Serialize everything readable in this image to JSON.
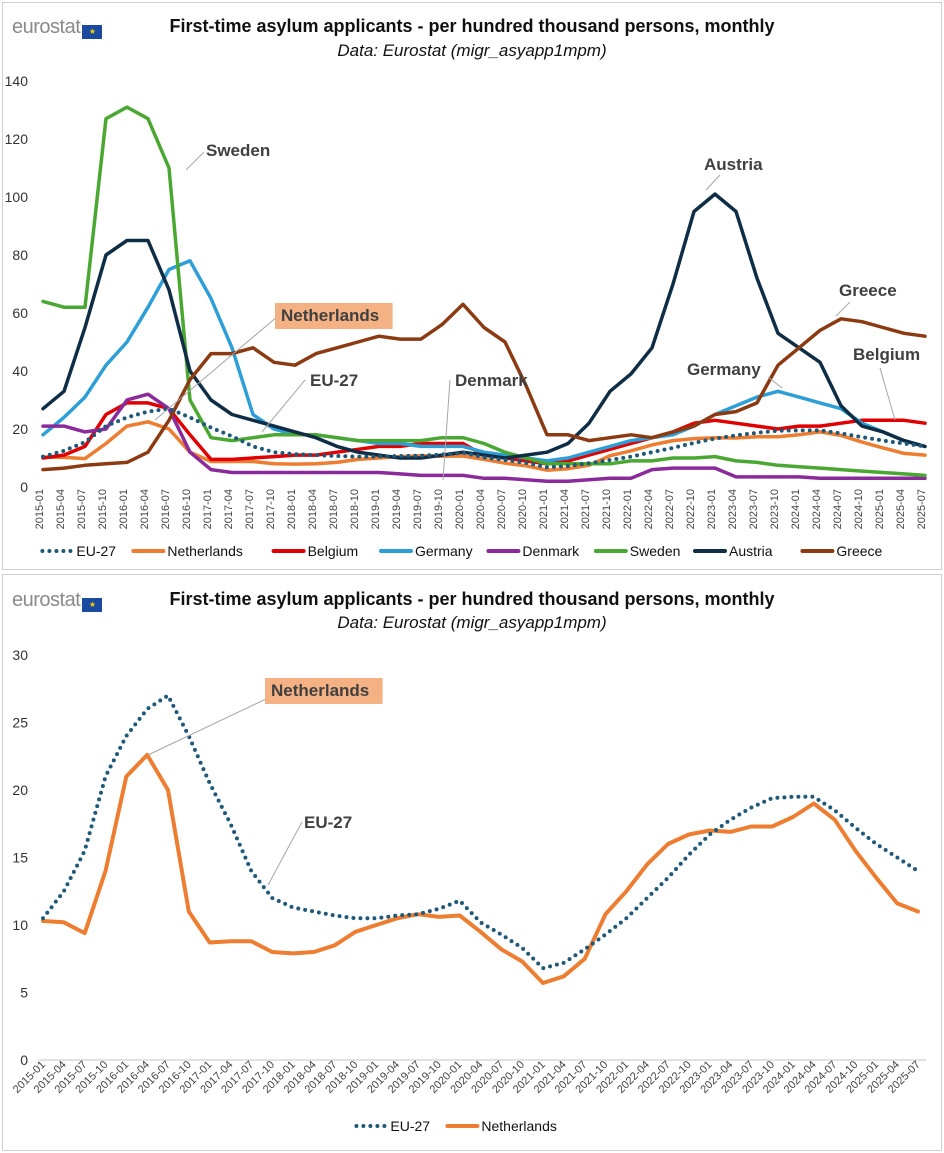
{
  "logo_text": "eurostat",
  "chart_data": [
    {
      "type": "line",
      "title": "First-time asylum applicants - per hundred thousand persons, monthly",
      "subtitle": "Data: Eurostat (migr_asyapp1mpm)",
      "ylim": [
        0,
        140
      ],
      "yticks": [
        0,
        20,
        40,
        60,
        80,
        100,
        120,
        140
      ],
      "grid": false,
      "legend": "bottom",
      "x": [
        "2015-01",
        "2015-04",
        "2015-07",
        "2015-10",
        "2016-01",
        "2016-04",
        "2016-07",
        "2016-10",
        "2017-01",
        "2017-04",
        "2017-07",
        "2017-10",
        "2018-01",
        "2018-04",
        "2018-07",
        "2018-10",
        "2019-01",
        "2019-04",
        "2019-07",
        "2019-10",
        "2020-01",
        "2020-04",
        "2020-07",
        "2020-10",
        "2021-01",
        "2021-04",
        "2021-07",
        "2021-10",
        "2022-01",
        "2022-04",
        "2022-07",
        "2022-10",
        "2023-01",
        "2023-04",
        "2023-07",
        "2023-10",
        "2024-01",
        "2024-04",
        "2024-07",
        "2024-10",
        "2025-01",
        "2025-04",
        "2025-07"
      ],
      "series": [
        {
          "name": "EU-27",
          "color": "#1f5878",
          "style": "dotted",
          "values": [
            10.5,
            12.5,
            15.5,
            21,
            24,
            26,
            27,
            24,
            20.5,
            17.5,
            14,
            12,
            11.3,
            11,
            10.7,
            10.5,
            10.5,
            10.7,
            10.8,
            11.2,
            11.8,
            10.2,
            9.3,
            8.3,
            6.8,
            7.2,
            8.2,
            9.3,
            10.5,
            12,
            13.5,
            15.2,
            16.7,
            17.8,
            18.7,
            19.4,
            19.5,
            19.5,
            18.5,
            17.2,
            16,
            15,
            14
          ]
        },
        {
          "name": "Netherlands",
          "color": "#ed7d31",
          "style": "solid",
          "values": [
            10.3,
            10.2,
            9.8,
            15,
            21,
            22.5,
            20,
            12,
            8.8,
            8.8,
            8.8,
            8,
            7.9,
            8,
            8.5,
            9.5,
            10,
            10.5,
            10.8,
            10.6,
            10.7,
            9.5,
            8.2,
            7.3,
            5.8,
            6.3,
            7.5,
            10.8,
            12.5,
            14.5,
            16,
            16.7,
            17,
            16.9,
            17.3,
            17.3,
            18,
            19,
            17.8,
            15.5,
            13.5,
            11.6,
            11
          ]
        },
        {
          "name": "Belgium",
          "color": "#e00000",
          "style": "solid",
          "values": [
            10,
            11,
            14,
            25,
            29,
            29,
            27,
            18,
            9.5,
            9.5,
            10,
            10.5,
            11,
            11,
            12,
            13,
            14,
            14,
            15,
            15,
            15,
            11,
            10,
            9,
            8,
            9,
            11,
            13,
            15,
            17,
            19,
            22,
            23,
            22,
            21,
            20,
            21,
            21,
            22,
            23,
            23,
            23,
            22
          ]
        },
        {
          "name": "Germany",
          "color": "#2e9fd6",
          "style": "solid",
          "values": [
            18,
            24,
            31,
            42,
            50,
            62,
            75,
            78,
            65,
            48,
            25,
            20,
            18,
            18,
            17,
            16,
            15,
            15,
            14,
            14,
            14,
            12,
            11,
            10,
            9,
            10,
            12,
            14,
            16,
            17,
            18,
            21,
            25,
            28,
            31,
            33,
            31,
            29,
            27,
            22,
            19,
            16,
            14
          ]
        },
        {
          "name": "Denmark",
          "color": "#8b2a9b",
          "style": "solid",
          "values": [
            21,
            21,
            19,
            20,
            30,
            32,
            27,
            12,
            6,
            5,
            5,
            5,
            5,
            5,
            5,
            5,
            5,
            4.5,
            4,
            4,
            4,
            3,
            3,
            2.5,
            2,
            2,
            2.5,
            3,
            3,
            6,
            6.5,
            6.5,
            6.5,
            3.5,
            3.5,
            3.5,
            3.5,
            3,
            3,
            3,
            3,
            3,
            3
          ]
        },
        {
          "name": "Sweden",
          "color": "#4aa832",
          "style": "solid",
          "values": [
            64,
            62,
            62,
            127,
            131,
            127,
            110,
            30,
            17,
            16,
            17,
            18,
            18,
            18,
            17,
            16,
            16,
            16,
            16,
            17,
            17,
            15,
            12,
            10,
            8,
            8,
            8,
            8,
            9,
            9,
            10,
            10,
            10.5,
            9,
            8.5,
            7.5,
            7,
            6.5,
            6,
            5.5,
            5,
            4.5,
            4
          ]
        },
        {
          "name": "Austria",
          "color": "#0f2d45",
          "style": "solid",
          "values": [
            27,
            33,
            55,
            80,
            85,
            85,
            68,
            40,
            30,
            25,
            23,
            21,
            19,
            17,
            14,
            12,
            11,
            10,
            10,
            11,
            12,
            11,
            10,
            11,
            12,
            15,
            22,
            33,
            39,
            48,
            70,
            95,
            101,
            95,
            72,
            53,
            48,
            43,
            28,
            21,
            19,
            16,
            14
          ]
        },
        {
          "name": "Greece",
          "color": "#8b3a12",
          "style": "solid",
          "values": [
            6,
            6.5,
            7.5,
            8,
            8.5,
            12,
            23,
            37,
            46,
            46,
            48,
            43,
            42,
            46,
            48,
            50,
            52,
            51,
            51,
            56,
            63,
            55,
            50,
            35,
            18,
            18,
            16,
            17,
            18,
            17,
            19,
            21,
            25,
            26,
            29,
            42,
            48,
            54,
            58,
            57,
            55,
            53,
            52
          ]
        }
      ],
      "annotations": [
        "Sweden",
        "Austria",
        "Greece",
        "Belgium",
        "Germany",
        "Denmark",
        "EU-27",
        "Netherlands"
      ]
    },
    {
      "type": "line",
      "title": "First-time asylum applicants - per hundred thousand persons, monthly",
      "subtitle": "Data: Eurostat (migr_asyapp1mpm)",
      "ylim": [
        0,
        30
      ],
      "yticks": [
        0,
        5,
        10,
        15,
        20,
        25,
        30
      ],
      "grid": false,
      "legend": "bottom",
      "x": [
        "2015-01",
        "2015-04",
        "2015-07",
        "2015-10",
        "2016-01",
        "2016-04",
        "2016-07",
        "2016-10",
        "2017-01",
        "2017-04",
        "2017-07",
        "2017-10",
        "2018-01",
        "2018-04",
        "2018-07",
        "2018-10",
        "2019-01",
        "2019-04",
        "2019-07",
        "2019-10",
        "2020-01",
        "2020-04",
        "2020-07",
        "2020-10",
        "2021-01",
        "2021-04",
        "2021-07",
        "2021-10",
        "2022-01",
        "2022-04",
        "2022-07",
        "2022-10",
        "2023-01",
        "2023-04",
        "2023-07",
        "2023-10",
        "2024-01",
        "2024-04",
        "2024-07",
        "2024-10",
        "2025-01",
        "2025-04",
        "2025-07"
      ],
      "series": [
        {
          "name": "EU-27",
          "color": "#1f5878",
          "style": "dotted",
          "values": [
            10.5,
            12.5,
            15.5,
            21,
            24,
            26,
            27,
            24,
            20.5,
            17.5,
            14,
            12,
            11.3,
            11,
            10.7,
            10.5,
            10.5,
            10.7,
            10.8,
            11.2,
            11.8,
            10.2,
            9.3,
            8.3,
            6.8,
            7.2,
            8.2,
            9.3,
            10.5,
            12,
            13.5,
            15.2,
            16.7,
            17.8,
            18.7,
            19.4,
            19.5,
            19.5,
            18.5,
            17.2,
            16,
            15,
            14
          ]
        },
        {
          "name": "Netherlands",
          "color": "#ed7d31",
          "style": "solid",
          "values": [
            10.3,
            10.2,
            9.4,
            14,
            21,
            22.6,
            20,
            11,
            8.7,
            8.8,
            8.8,
            8,
            7.9,
            8,
            8.5,
            9.5,
            10,
            10.5,
            10.8,
            10.6,
            10.7,
            9.5,
            8.2,
            7.3,
            5.7,
            6.2,
            7.5,
            10.8,
            12.5,
            14.5,
            16,
            16.7,
            17,
            16.9,
            17.3,
            17.3,
            18,
            19,
            17.8,
            15.5,
            13.5,
            11.6,
            11
          ]
        }
      ],
      "annotations": [
        "Netherlands",
        "EU-27"
      ]
    }
  ]
}
